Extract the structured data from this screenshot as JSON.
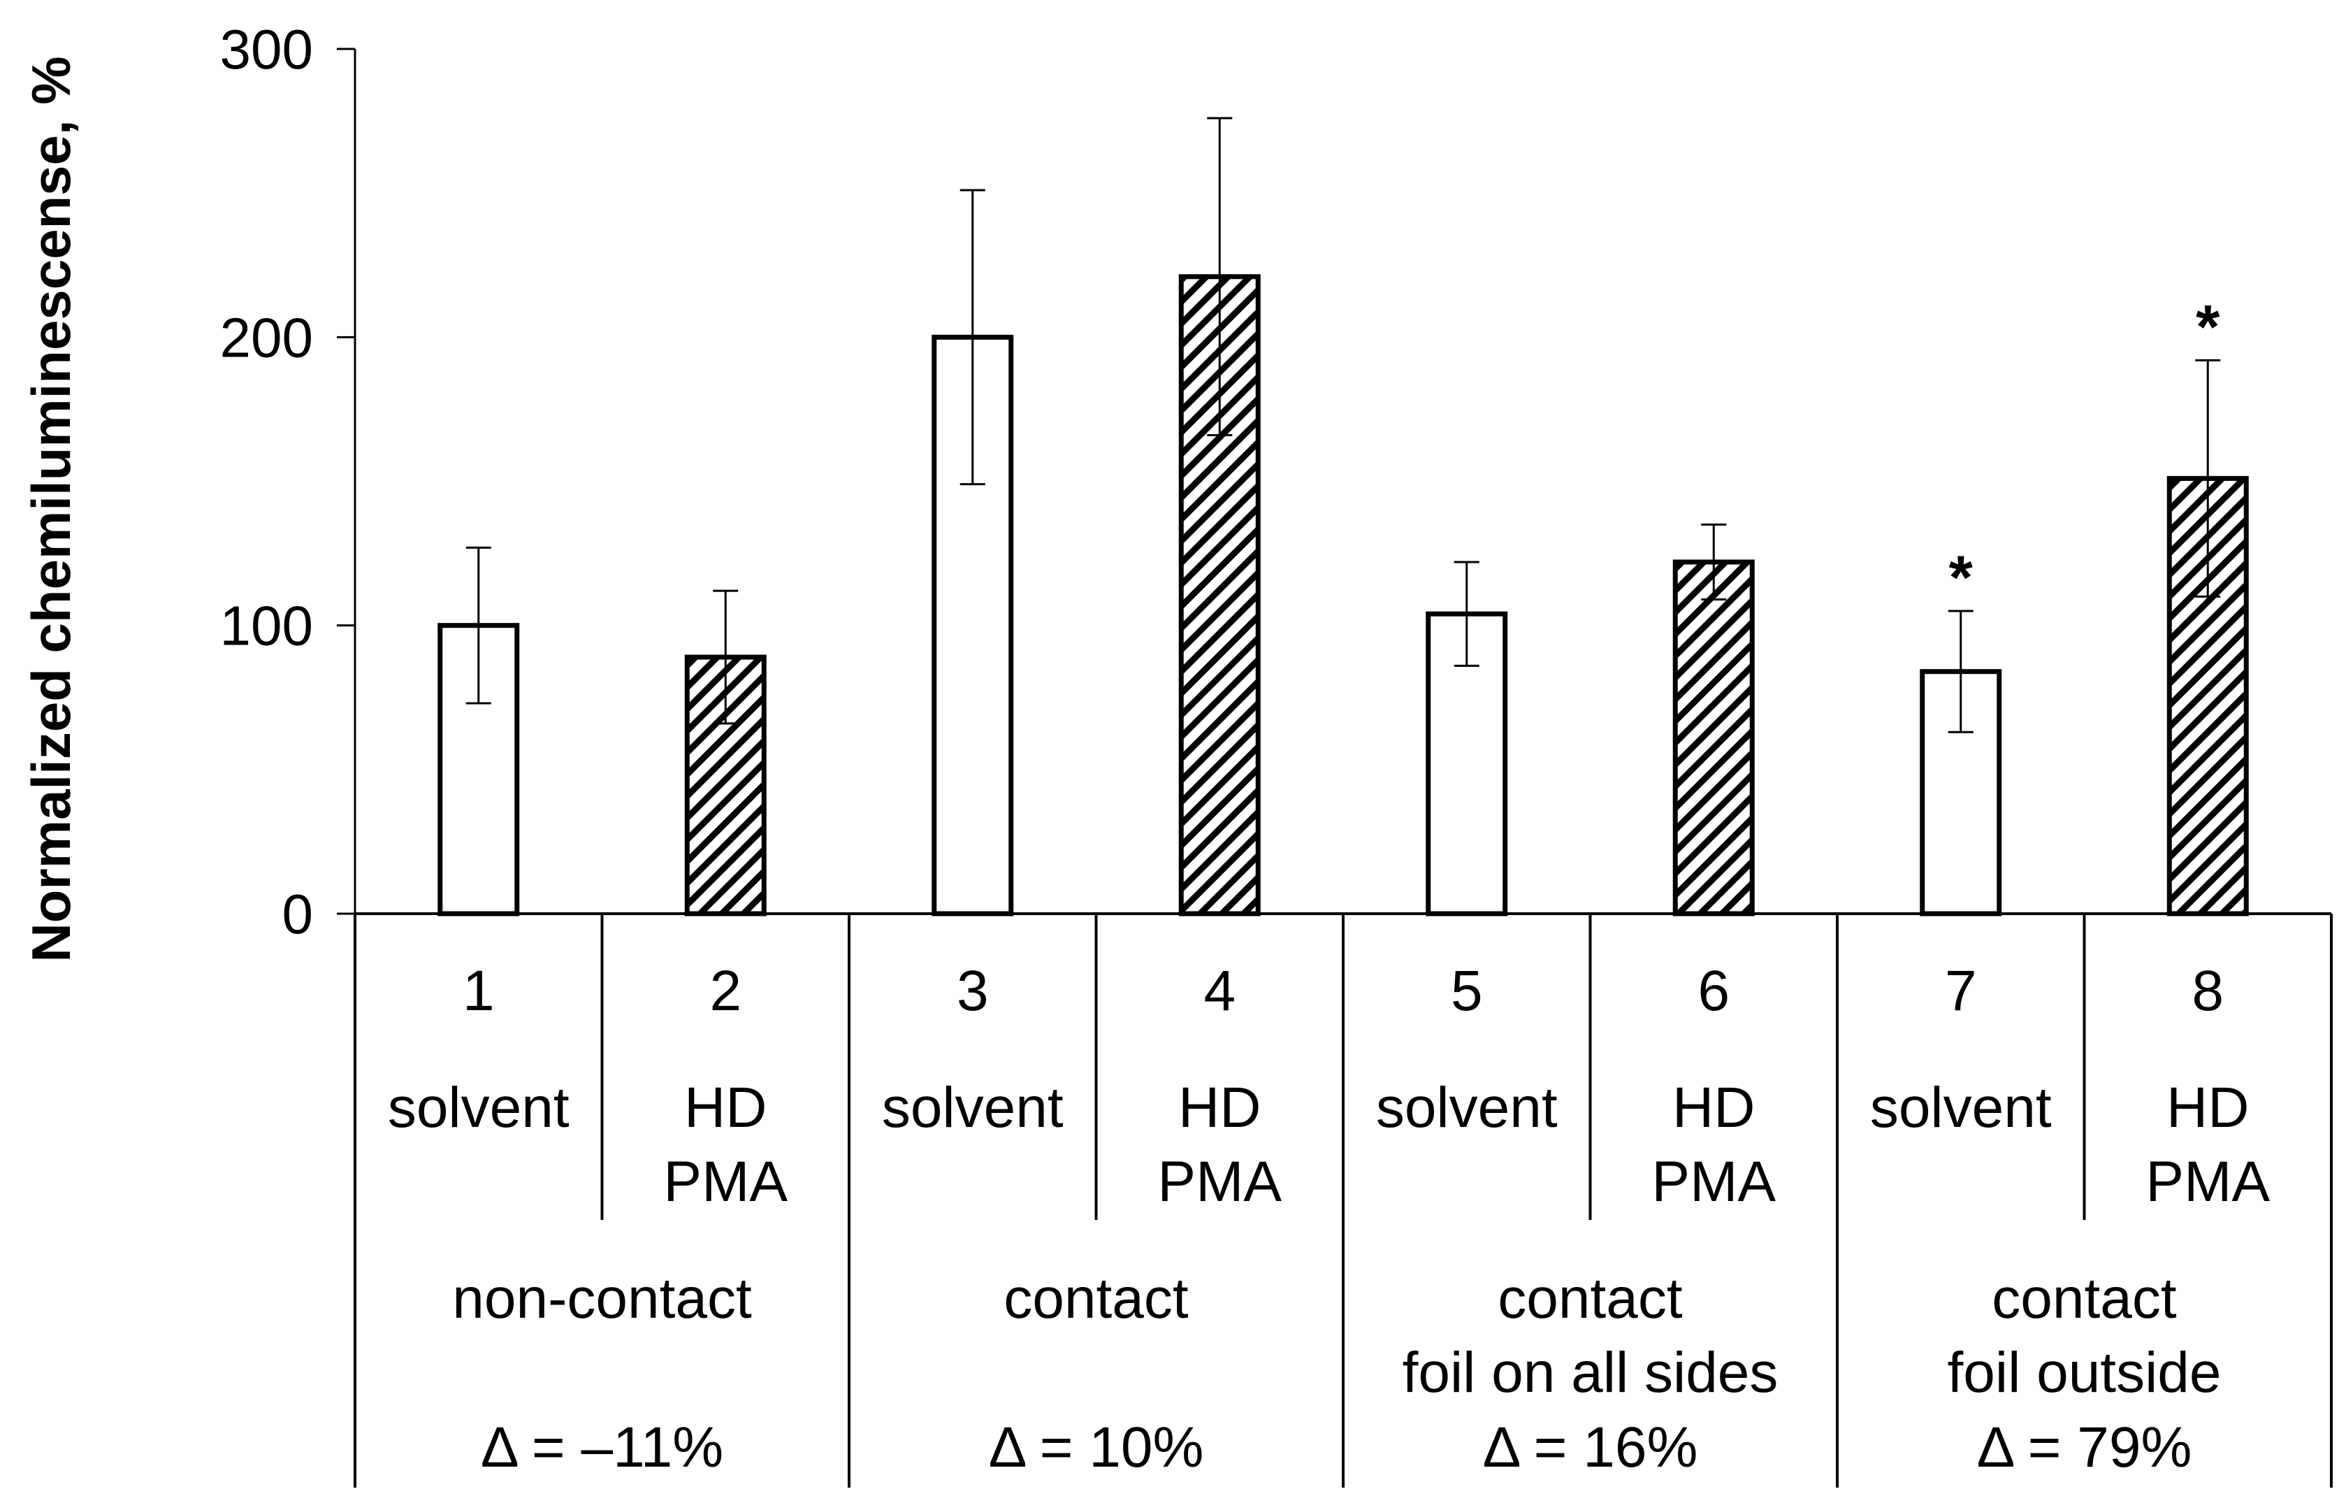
{
  "chart_data": {
    "type": "bar",
    "title": "",
    "xlabel": "",
    "ylabel": "Normalized chemiluminescense, %",
    "ylim": [
      0,
      300
    ],
    "yticks": [
      0,
      100,
      200,
      300
    ],
    "grid": false,
    "bars": [
      {
        "number": "1",
        "label_lines": [
          "solvent"
        ],
        "value": 100,
        "error": 27,
        "pattern": "open",
        "star": ""
      },
      {
        "number": "2",
        "label_lines": [
          "HD",
          "PMA"
        ],
        "value": 89,
        "error": 23,
        "pattern": "hatched",
        "star": ""
      },
      {
        "number": "3",
        "label_lines": [
          "solvent"
        ],
        "value": 200,
        "error": 51,
        "pattern": "open",
        "star": ""
      },
      {
        "number": "4",
        "label_lines": [
          "HD",
          "PMA"
        ],
        "value": 221,
        "error": 55,
        "pattern": "hatched",
        "star": ""
      },
      {
        "number": "5",
        "label_lines": [
          "solvent"
        ],
        "value": 104,
        "error": 18,
        "pattern": "open",
        "star": ""
      },
      {
        "number": "6",
        "label_lines": [
          "HD",
          "PMA"
        ],
        "value": 122,
        "error": 13,
        "pattern": "hatched",
        "star": ""
      },
      {
        "number": "7",
        "label_lines": [
          "solvent"
        ],
        "value": 84,
        "error": 21,
        "pattern": "open",
        "star": "*"
      },
      {
        "number": "8",
        "label_lines": [
          "HD",
          "PMA"
        ],
        "value": 151,
        "error": 41,
        "pattern": "hatched",
        "star": "*"
      }
    ],
    "groups": [
      {
        "label_lines": [
          "non-contact"
        ],
        "delta": "Δ = –11%"
      },
      {
        "label_lines": [
          "contact"
        ],
        "delta": "Δ = 10%"
      },
      {
        "label_lines": [
          "contact",
          "foil on all sides"
        ],
        "delta": "Δ = 16%"
      },
      {
        "label_lines": [
          "contact",
          "foil outside"
        ],
        "delta": "Δ = 79%"
      }
    ]
  }
}
